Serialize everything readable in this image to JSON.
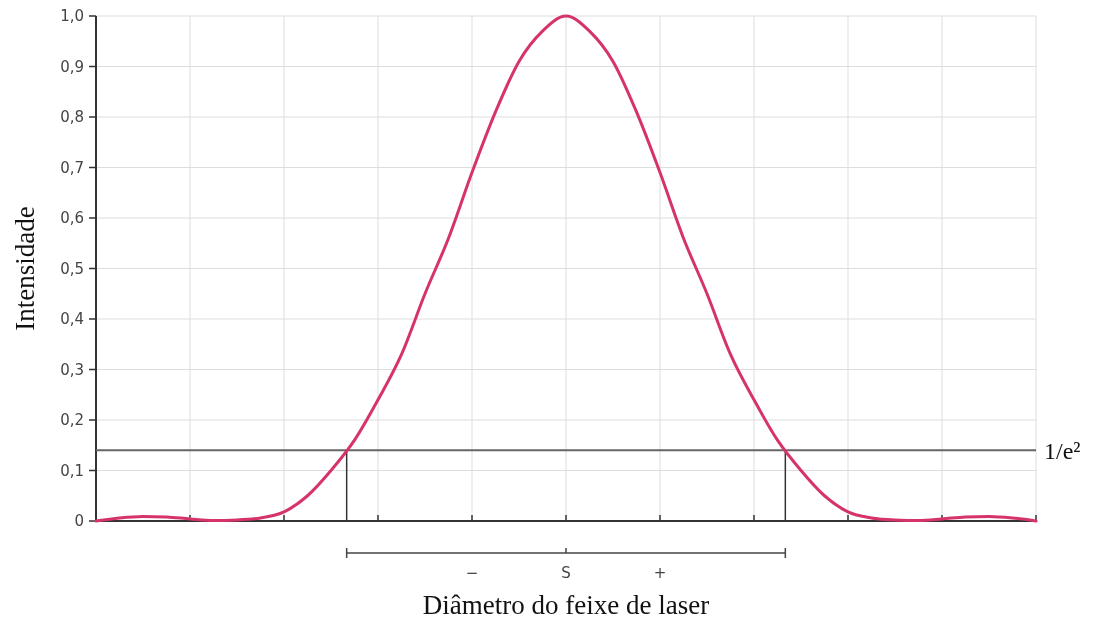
{
  "chart_data": {
    "type": "line",
    "xlabel": "Diâmetro do feixe de laser",
    "ylabel": "Intensidade",
    "categories": [
      null,
      null,
      null,
      null,
      null,
      null,
      null,
      null,
      null,
      null,
      null,
      null,
      null,
      null,
      null,
      null,
      "−",
      null,
      null,
      null,
      "S",
      null,
      null,
      null,
      "+",
      null,
      null,
      null,
      null,
      null,
      null,
      null,
      null,
      null,
      null,
      null,
      null,
      null,
      null,
      null,
      null
    ],
    "series": [
      {
        "color": "#d6336c",
        "values": [
          0,
          0.006,
          0.009,
          0.008,
          0.004,
          0.001,
          0.002,
          0.006,
          0.018,
          0.05,
          0.1,
          0.16,
          0.24,
          0.33,
          0.45,
          0.56,
          0.69,
          0.81,
          0.91,
          0.97,
          1.0,
          0.97,
          0.91,
          0.81,
          0.69,
          0.56,
          0.45,
          0.33,
          0.24,
          0.16,
          0.1,
          0.05,
          0.018,
          0.006,
          0.002,
          0.001,
          0.004,
          0.008,
          0.009,
          0.006,
          0
        ]
      }
    ],
    "ylim": [
      0,
      1
    ],
    "yticks": [
      {
        "value": 0,
        "label": "0"
      },
      {
        "value": 0.1,
        "label": "0,1"
      },
      {
        "value": 0.2,
        "label": "0,2"
      },
      {
        "value": 0.3,
        "label": "0,3"
      },
      {
        "value": 0.4,
        "label": "0,4"
      },
      {
        "value": 0.5,
        "label": "0,5"
      },
      {
        "value": 0.6,
        "label": "0,6"
      },
      {
        "value": 0.7,
        "label": "0,7"
      },
      {
        "value": 0.8,
        "label": "0,8"
      },
      {
        "value": 0.9,
        "label": "0,9"
      },
      {
        "value": 1,
        "label": "1,0"
      }
    ],
    "ref_lines": [
      {
        "axis": "y",
        "value": 0.14,
        "label": "1/e²",
        "color": "#666666"
      }
    ],
    "grid": true,
    "marker": "none",
    "line_style": "solid"
  }
}
